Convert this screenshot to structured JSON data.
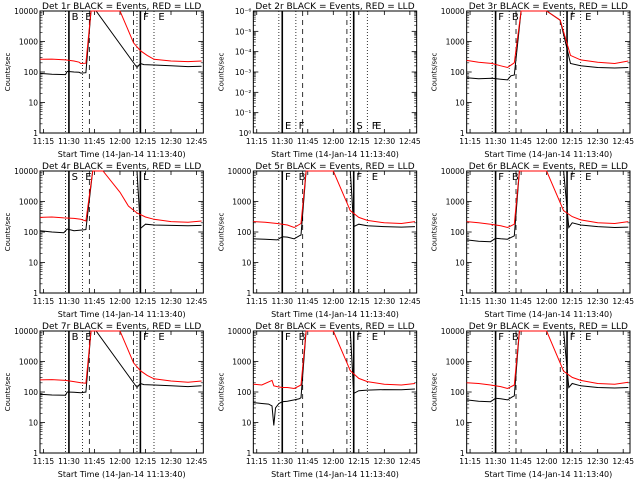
{
  "colors": {
    "events": "#000000",
    "lld": "#ff0000",
    "background": "#ffffff",
    "frame": "#000000"
  },
  "grid": {
    "rows": 3,
    "cols": 3
  },
  "chart_data": [
    {
      "title": "Det 1r BLACK = Events, RED = LLD",
      "type": "line",
      "y_scale": "log",
      "ylim": [
        1,
        10000
      ],
      "ylabel": "Counts/sec",
      "xlabel": "Start Time (14-Jan-14 11:13:40)",
      "x_ticks": [
        "11:15",
        "11:30",
        "11:45",
        "12:00",
        "12:15",
        "12:30",
        "12:45"
      ],
      "y_ticks": [
        "1",
        "10",
        "100",
        "1000",
        "10000"
      ],
      "events_letters": [
        "B",
        "E",
        "F",
        "E"
      ],
      "event_times": [
        "11:42",
        "12:08"
      ],
      "series": [
        {
          "role": "events",
          "x": [
            "11:13",
            "11:20",
            "11:28",
            "11:29",
            "11:33",
            "11:36",
            "11:37",
            "11:40",
            "11:43",
            "11:46",
            "12:10",
            "12:12",
            "12:14",
            "12:20",
            "12:30",
            "12:40",
            "12:48"
          ],
          "y": [
            90,
            85,
            82,
            105,
            100,
            98,
            92,
            95,
            10000,
            10000,
            140,
            190,
            175,
            170,
            160,
            150,
            155
          ]
        },
        {
          "role": "lld",
          "x": [
            "11:13",
            "11:20",
            "11:28",
            "11:33",
            "11:36",
            "11:37",
            "11:40",
            "11:43",
            "11:46",
            "12:00",
            "12:08",
            "12:12",
            "12:16",
            "12:20",
            "12:30",
            "12:40",
            "12:48"
          ],
          "y": [
            260,
            265,
            250,
            230,
            210,
            190,
            195,
            10000,
            10000,
            10000,
            900,
            500,
            350,
            260,
            230,
            220,
            230
          ]
        }
      ]
    },
    {
      "title": "Det 2r BLACK = Events, RED = LLD",
      "type": "line",
      "y_scale": "log",
      "ylim": [
        1,
        1e-06
      ],
      "ylabel": "Counts/sec",
      "xlabel": "Start Time (14-Jan-14 11:13:40)",
      "x_ticks": [
        "11:15",
        "11:30",
        "11:45",
        "12:00",
        "12:15",
        "12:30",
        "12:45"
      ],
      "y_ticks": [
        "10⁰",
        "10⁻¹",
        "10⁻²",
        "10⁻³",
        "10⁻⁴",
        "10⁻⁵",
        "10⁻⁶"
      ],
      "events_letters": [
        "E",
        "F",
        "S",
        "F",
        "E"
      ],
      "event_times": [
        "11:42",
        "12:08"
      ],
      "series": []
    },
    {
      "title": "Det 3r BLACK = Events, RED = LLD",
      "type": "line",
      "y_scale": "log",
      "ylim": [
        1,
        10000
      ],
      "ylabel": "Counts/sec",
      "xlabel": "Start Time (14-Jan-14 11:13:40)",
      "x_ticks": [
        "11:15",
        "11:30",
        "11:45",
        "12:00",
        "12:15",
        "12:30",
        "12:45"
      ],
      "y_ticks": [
        "1",
        "10",
        "100",
        "1000",
        "10000"
      ],
      "events_letters": [
        "F",
        "B",
        "F",
        "E"
      ],
      "event_times": [
        "11:42",
        "12:08"
      ],
      "series": [
        {
          "role": "events",
          "x": [
            "11:13",
            "11:20",
            "11:28",
            "11:33",
            "11:37",
            "11:39",
            "11:41",
            "11:45",
            "12:00",
            "12:08",
            "12:14",
            "12:20",
            "12:30",
            "12:40",
            "12:48"
          ],
          "y": [
            65,
            60,
            62,
            58,
            55,
            75,
            80,
            10000,
            10000,
            5000,
            190,
            160,
            140,
            135,
            140
          ]
        },
        {
          "role": "lld",
          "x": [
            "11:13",
            "11:20",
            "11:28",
            "11:33",
            "11:37",
            "11:41",
            "11:45",
            "12:00",
            "12:08",
            "12:14",
            "12:20",
            "12:30",
            "12:40",
            "12:48"
          ],
          "y": [
            240,
            210,
            190,
            160,
            140,
            200,
            10000,
            10000,
            5000,
            350,
            250,
            210,
            190,
            230
          ]
        }
      ]
    },
    {
      "title": "Det 4r BLACK = Events, RED = LLD",
      "type": "line",
      "y_scale": "log",
      "ylim": [
        1,
        10000
      ],
      "ylabel": "Counts/sec",
      "xlabel": "Start Time (14-Jan-14 11:13:40)",
      "x_ticks": [
        "11:15",
        "11:30",
        "11:45",
        "12:00",
        "12:15",
        "12:30",
        "12:45"
      ],
      "y_ticks": [
        "1",
        "10",
        "100",
        "1000",
        "10000"
      ],
      "events_letters": [
        "S",
        "E",
        "L"
      ],
      "event_times": [
        "11:42",
        "12:08"
      ],
      "series": [
        {
          "role": "events",
          "x": [
            "11:13",
            "11:20",
            "11:27",
            "11:29",
            "11:33",
            "11:37",
            "11:40",
            "11:44",
            "12:00",
            "12:10",
            "12:12",
            "12:15",
            "12:20",
            "12:30",
            "12:40",
            "12:48"
          ],
          "y": [
            110,
            100,
            95,
            125,
            110,
            115,
            120,
            10000,
            10000,
            10000,
            130,
            180,
            170,
            165,
            160,
            165
          ]
        },
        {
          "role": "lld",
          "x": [
            "11:13",
            "11:20",
            "11:27",
            "11:33",
            "11:37",
            "11:40",
            "11:44",
            "11:50",
            "12:00",
            "12:05",
            "12:10",
            "12:15",
            "12:20",
            "12:30",
            "12:40",
            "12:48"
          ],
          "y": [
            300,
            310,
            290,
            280,
            260,
            230,
            10000,
            10000,
            2000,
            700,
            420,
            310,
            260,
            220,
            210,
            230
          ]
        }
      ]
    },
    {
      "title": "Det 5r BLACK = Events, RED = LLD",
      "type": "line",
      "y_scale": "log",
      "ylim": [
        1,
        10000
      ],
      "ylabel": "Counts/sec",
      "xlabel": "Start Time (14-Jan-14 11:13:40)",
      "x_ticks": [
        "11:15",
        "11:30",
        "11:45",
        "12:00",
        "12:15",
        "12:30",
        "12:45"
      ],
      "y_ticks": [
        "1",
        "10",
        "100",
        "1000",
        "10000"
      ],
      "events_letters": [
        "F",
        "B",
        "F",
        "E"
      ],
      "event_times": [
        "11:42",
        "12:08"
      ],
      "series": [
        {
          "role": "events",
          "x": [
            "11:13",
            "11:20",
            "11:27",
            "11:30",
            "11:33",
            "11:37",
            "11:40",
            "11:41",
            "11:44",
            "12:00",
            "12:10",
            "12:12",
            "12:15",
            "12:20",
            "12:30",
            "12:40",
            "12:48"
          ],
          "y": [
            60,
            58,
            55,
            70,
            68,
            60,
            75,
            80,
            10000,
            10000,
            10000,
            150,
            180,
            160,
            150,
            145,
            150
          ]
        },
        {
          "role": "lld",
          "x": [
            "11:13",
            "11:20",
            "11:27",
            "11:33",
            "11:37",
            "11:41",
            "11:44",
            "12:00",
            "12:10",
            "12:15",
            "12:20",
            "12:30",
            "12:40",
            "12:48"
          ],
          "y": [
            220,
            210,
            190,
            170,
            140,
            190,
            10000,
            10000,
            500,
            300,
            240,
            200,
            190,
            220
          ]
        }
      ]
    },
    {
      "title": "Det 6r BLACK = Events, RED = LLD",
      "type": "line",
      "y_scale": "log",
      "ylim": [
        1,
        10000
      ],
      "ylabel": "Counts/sec",
      "xlabel": "Start Time (14-Jan-14 11:13:40)",
      "x_ticks": [
        "11:15",
        "11:30",
        "11:45",
        "12:00",
        "12:15",
        "12:30",
        "12:45"
      ],
      "y_ticks": [
        "1",
        "10",
        "100",
        "1000",
        "10000"
      ],
      "events_letters": [
        "F",
        "B",
        "F",
        "E"
      ],
      "event_times": [
        "11:42",
        "12:08"
      ],
      "series": [
        {
          "role": "events",
          "x": [
            "11:13",
            "11:20",
            "11:27",
            "11:30",
            "11:33",
            "11:37",
            "11:40",
            "11:41",
            "11:44",
            "12:00",
            "12:10",
            "12:13",
            "12:15",
            "12:20",
            "12:30",
            "12:40",
            "12:48"
          ],
          "y": [
            55,
            50,
            48,
            62,
            60,
            58,
            70,
            75,
            10000,
            10000,
            10000,
            140,
            200,
            170,
            150,
            140,
            145
          ]
        },
        {
          "role": "lld",
          "x": [
            "11:13",
            "11:20",
            "11:27",
            "11:33",
            "11:37",
            "11:41",
            "11:44",
            "12:00",
            "12:10",
            "12:15",
            "12:20",
            "12:30",
            "12:40",
            "12:48"
          ],
          "y": [
            220,
            200,
            180,
            160,
            140,
            180,
            10000,
            10000,
            500,
            320,
            250,
            200,
            190,
            220
          ]
        }
      ]
    },
    {
      "title": "Det 7r BLACK = Events, RED = LLD",
      "type": "line",
      "y_scale": "log",
      "ylim": [
        1,
        10000
      ],
      "ylabel": "Counts/sec",
      "xlabel": "Start Time (14-Jan-14 11:13:40)",
      "x_ticks": [
        "11:15",
        "11:30",
        "11:45",
        "12:00",
        "12:15",
        "12:30",
        "12:45"
      ],
      "y_ticks": [
        "1",
        "10",
        "100",
        "1000",
        "10000"
      ],
      "events_letters": [
        "B",
        "E",
        "F",
        "E"
      ],
      "event_times": [
        "11:42",
        "12:08"
      ],
      "series": [
        {
          "role": "events",
          "x": [
            "11:13",
            "11:20",
            "11:28",
            "11:29",
            "11:33",
            "11:37",
            "11:40",
            "11:43",
            "11:46",
            "12:10",
            "12:12",
            "12:14",
            "12:20",
            "12:30",
            "12:40",
            "12:48"
          ],
          "y": [
            85,
            80,
            78,
            100,
            98,
            95,
            100,
            10000,
            10000,
            140,
            190,
            175,
            170,
            160,
            150,
            160
          ]
        },
        {
          "role": "lld",
          "x": [
            "11:13",
            "11:20",
            "11:28",
            "11:33",
            "11:37",
            "11:40",
            "11:43",
            "11:46",
            "12:00",
            "12:08",
            "12:12",
            "12:16",
            "12:20",
            "12:30",
            "12:40",
            "12:48"
          ],
          "y": [
            250,
            255,
            240,
            220,
            200,
            195,
            10000,
            10000,
            10000,
            900,
            500,
            350,
            270,
            230,
            210,
            230
          ]
        }
      ]
    },
    {
      "title": "Det 8r BLACK = Events, RED = LLD",
      "type": "line",
      "y_scale": "log",
      "ylim": [
        1,
        10000
      ],
      "ylabel": "Counts/sec",
      "xlabel": "Start Time (14-Jan-14 11:13:40)",
      "x_ticks": [
        "11:15",
        "11:30",
        "11:45",
        "12:00",
        "12:15",
        "12:30",
        "12:45"
      ],
      "y_ticks": [
        "1",
        "10",
        "100",
        "1000",
        "10000"
      ],
      "events_letters": [
        "F",
        "B",
        "F",
        "E"
      ],
      "event_times": [
        "11:42",
        "12:08"
      ],
      "series": [
        {
          "role": "events",
          "x": [
            "11:13",
            "11:18",
            "11:22",
            "11:24",
            "11:25",
            "11:26",
            "11:28",
            "11:30",
            "11:33",
            "11:37",
            "11:40",
            "11:41",
            "11:44",
            "12:00",
            "12:10",
            "12:12",
            "12:15",
            "12:20",
            "12:30",
            "12:40",
            "12:48"
          ],
          "y": [
            45,
            42,
            40,
            35,
            8,
            30,
            42,
            48,
            50,
            55,
            60,
            65,
            10000,
            10000,
            10000,
            90,
            110,
            115,
            120,
            118,
            125
          ]
        },
        {
          "role": "lld",
          "x": [
            "11:13",
            "11:18",
            "11:24",
            "11:25",
            "11:27",
            "11:30",
            "11:33",
            "11:37",
            "11:41",
            "11:44",
            "12:00",
            "12:10",
            "12:15",
            "12:20",
            "12:30",
            "12:40",
            "12:48"
          ],
          "y": [
            180,
            170,
            240,
            160,
            150,
            140,
            140,
            130,
            170,
            10000,
            10000,
            500,
            280,
            220,
            180,
            170,
            190
          ]
        }
      ]
    },
    {
      "title": "Det 9r BLACK = Events, RED = LLD",
      "type": "line",
      "y_scale": "log",
      "ylim": [
        1,
        10000
      ],
      "ylabel": "Counts/sec",
      "xlabel": "Start Time (14-Jan-14 11:13:40)",
      "x_ticks": [
        "11:15",
        "11:30",
        "11:45",
        "12:00",
        "12:15",
        "12:30",
        "12:45"
      ],
      "y_ticks": [
        "1",
        "10",
        "100",
        "1000",
        "10000"
      ],
      "events_letters": [
        "F",
        "B",
        "F",
        "E"
      ],
      "event_times": [
        "11:42",
        "12:08"
      ],
      "series": [
        {
          "role": "events",
          "x": [
            "11:13",
            "11:20",
            "11:27",
            "11:30",
            "11:33",
            "11:37",
            "11:40",
            "11:41",
            "11:44",
            "12:00",
            "12:10",
            "12:13",
            "12:15",
            "12:20",
            "12:30",
            "12:40",
            "12:48"
          ],
          "y": [
            55,
            50,
            48,
            62,
            60,
            55,
            70,
            75,
            10000,
            10000,
            10000,
            140,
            190,
            160,
            140,
            135,
            140
          ]
        },
        {
          "role": "lld",
          "x": [
            "11:13",
            "11:20",
            "11:27",
            "11:33",
            "11:37",
            "11:41",
            "11:44",
            "12:00",
            "12:10",
            "12:15",
            "12:20",
            "12:30",
            "12:40",
            "12:48"
          ],
          "y": [
            200,
            190,
            170,
            150,
            130,
            170,
            10000,
            10000,
            480,
            300,
            240,
            190,
            180,
            210
          ]
        }
      ]
    }
  ]
}
